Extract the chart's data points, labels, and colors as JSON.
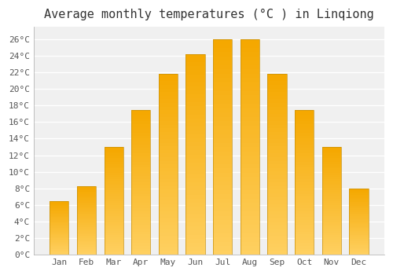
{
  "title": "Average monthly temperatures (°C ) in Linqiong",
  "months": [
    "Jan",
    "Feb",
    "Mar",
    "Apr",
    "May",
    "Jun",
    "Jul",
    "Aug",
    "Sep",
    "Oct",
    "Nov",
    "Dec"
  ],
  "temperatures": [
    6.5,
    8.3,
    13.0,
    17.5,
    21.8,
    24.2,
    26.0,
    26.0,
    21.8,
    17.5,
    13.0,
    8.0
  ],
  "bar_color_top": "#F5A800",
  "bar_color_bottom": "#FFD060",
  "bar_edge_color": "#C8900A",
  "bar_edge_width": 0.5,
  "background_color": "#FFFFFF",
  "plot_bg_color": "#F0F0F0",
  "grid_color": "#FFFFFF",
  "yticks": [
    0,
    2,
    4,
    6,
    8,
    10,
    12,
    14,
    16,
    18,
    20,
    22,
    24,
    26
  ],
  "ylim": [
    0,
    27.5
  ],
  "title_fontsize": 11,
  "tick_fontsize": 8,
  "font_family": "monospace"
}
